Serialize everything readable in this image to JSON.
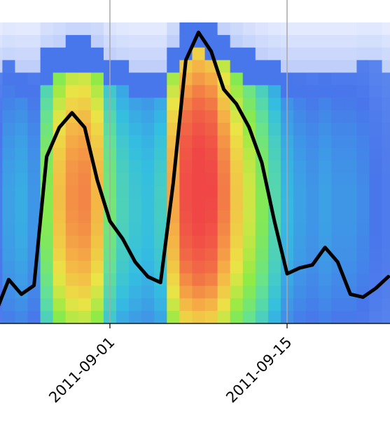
{
  "chart_data": {
    "type": "heatmap",
    "title": "",
    "xlabel": "",
    "ylabel": "",
    "x_axis": {
      "type": "date",
      "range": [
        "2011-08-23",
        "2011-09-23"
      ],
      "ticks": [
        "2011-09-01",
        "2011-09-15"
      ],
      "tick_labels": [
        "2011-09-01",
        "2011-09-15"
      ]
    },
    "heatmap": {
      "columns": [
        {
          "date": "2011-08-23",
          "intensity": 0.12,
          "extent": 0.84
        },
        {
          "date": "2011-08-24",
          "intensity": 0.18,
          "extent": 0.86
        },
        {
          "date": "2011-08-25",
          "intensity": 0.2,
          "extent": 0.85
        },
        {
          "date": "2011-08-26",
          "intensity": 0.16,
          "extent": 0.85
        },
        {
          "date": "2011-08-27",
          "intensity": 0.45,
          "extent": 0.9
        },
        {
          "date": "2011-08-28",
          "intensity": 0.68,
          "extent": 0.92
        },
        {
          "date": "2011-08-29",
          "intensity": 0.78,
          "extent": 0.94
        },
        {
          "date": "2011-08-30",
          "intensity": 0.8,
          "extent": 0.94
        },
        {
          "date": "2011-08-31",
          "intensity": 0.7,
          "extent": 0.93
        },
        {
          "date": "2011-09-01",
          "intensity": 0.4,
          "extent": 0.88
        },
        {
          "date": "2011-09-02",
          "intensity": 0.3,
          "extent": 0.86
        },
        {
          "date": "2011-09-03",
          "intensity": 0.26,
          "extent": 0.85
        },
        {
          "date": "2011-09-04",
          "intensity": 0.24,
          "extent": 0.85
        },
        {
          "date": "2011-09-05",
          "intensity": 0.28,
          "extent": 0.85
        },
        {
          "date": "2011-09-06",
          "intensity": 0.74,
          "extent": 0.93
        },
        {
          "date": "2011-09-07",
          "intensity": 0.95,
          "extent": 0.99
        },
        {
          "date": "2011-09-08",
          "intensity": 1.0,
          "extent": 1.0
        },
        {
          "date": "2011-09-09",
          "intensity": 0.97,
          "extent": 0.99
        },
        {
          "date": "2011-09-10",
          "intensity": 0.82,
          "extent": 0.96
        },
        {
          "date": "2011-09-11",
          "intensity": 0.66,
          "extent": 0.93
        },
        {
          "date": "2011-09-12",
          "intensity": 0.55,
          "extent": 0.9
        },
        {
          "date": "2011-09-13",
          "intensity": 0.44,
          "extent": 0.88
        },
        {
          "date": "2011-09-14",
          "intensity": 0.32,
          "extent": 0.86
        },
        {
          "date": "2011-09-15",
          "intensity": 0.22,
          "extent": 0.85
        },
        {
          "date": "2011-09-16",
          "intensity": 0.18,
          "extent": 0.85
        },
        {
          "date": "2011-09-17",
          "intensity": 0.16,
          "extent": 0.85
        },
        {
          "date": "2011-09-18",
          "intensity": 0.18,
          "extent": 0.85
        },
        {
          "date": "2011-09-19",
          "intensity": 0.16,
          "extent": 0.85
        },
        {
          "date": "2011-09-20",
          "intensity": 0.16,
          "extent": 0.85
        },
        {
          "date": "2011-09-21",
          "intensity": 0.14,
          "extent": 0.86
        },
        {
          "date": "2011-09-22",
          "intensity": 0.1,
          "extent": 0.86
        },
        {
          "date": "2011-09-23",
          "intensity": 0.08,
          "extent": 0.84
        }
      ]
    },
    "series": [
      {
        "color": "#000000",
        "points": [
          {
            "date": "2011-08-23",
            "y": 0.04
          },
          {
            "date": "2011-08-24",
            "y": 0.15
          },
          {
            "date": "2011-08-25",
            "y": 0.1
          },
          {
            "date": "2011-08-26",
            "y": 0.13
          },
          {
            "date": "2011-08-27",
            "y": 0.57
          },
          {
            "date": "2011-08-28",
            "y": 0.67
          },
          {
            "date": "2011-08-29",
            "y": 0.72
          },
          {
            "date": "2011-08-30",
            "y": 0.67
          },
          {
            "date": "2011-08-31",
            "y": 0.49
          },
          {
            "date": "2011-09-01",
            "y": 0.35
          },
          {
            "date": "2011-09-02",
            "y": 0.29
          },
          {
            "date": "2011-09-03",
            "y": 0.21
          },
          {
            "date": "2011-09-04",
            "y": 0.16
          },
          {
            "date": "2011-09-05",
            "y": 0.14
          },
          {
            "date": "2011-09-06",
            "y": 0.48
          },
          {
            "date": "2011-09-07",
            "y": 0.9
          },
          {
            "date": "2011-09-08",
            "y": 0.995
          },
          {
            "date": "2011-09-09",
            "y": 0.93
          },
          {
            "date": "2011-09-10",
            "y": 0.8
          },
          {
            "date": "2011-09-11",
            "y": 0.75
          },
          {
            "date": "2011-09-12",
            "y": 0.67
          },
          {
            "date": "2011-09-13",
            "y": 0.55
          },
          {
            "date": "2011-09-14",
            "y": 0.35
          },
          {
            "date": "2011-09-15",
            "y": 0.17
          },
          {
            "date": "2011-09-16",
            "y": 0.19
          },
          {
            "date": "2011-09-17",
            "y": 0.2
          },
          {
            "date": "2011-09-18",
            "y": 0.26
          },
          {
            "date": "2011-09-19",
            "y": 0.21
          },
          {
            "date": "2011-09-20",
            "y": 0.1
          },
          {
            "date": "2011-09-21",
            "y": 0.09
          },
          {
            "date": "2011-09-22",
            "y": 0.12
          },
          {
            "date": "2011-09-23",
            "y": 0.16
          }
        ]
      }
    ],
    "vertical_lines": [
      "2011-09-01",
      "2011-09-15"
    ],
    "grid": false,
    "legend": "none",
    "colormap": "jet"
  }
}
